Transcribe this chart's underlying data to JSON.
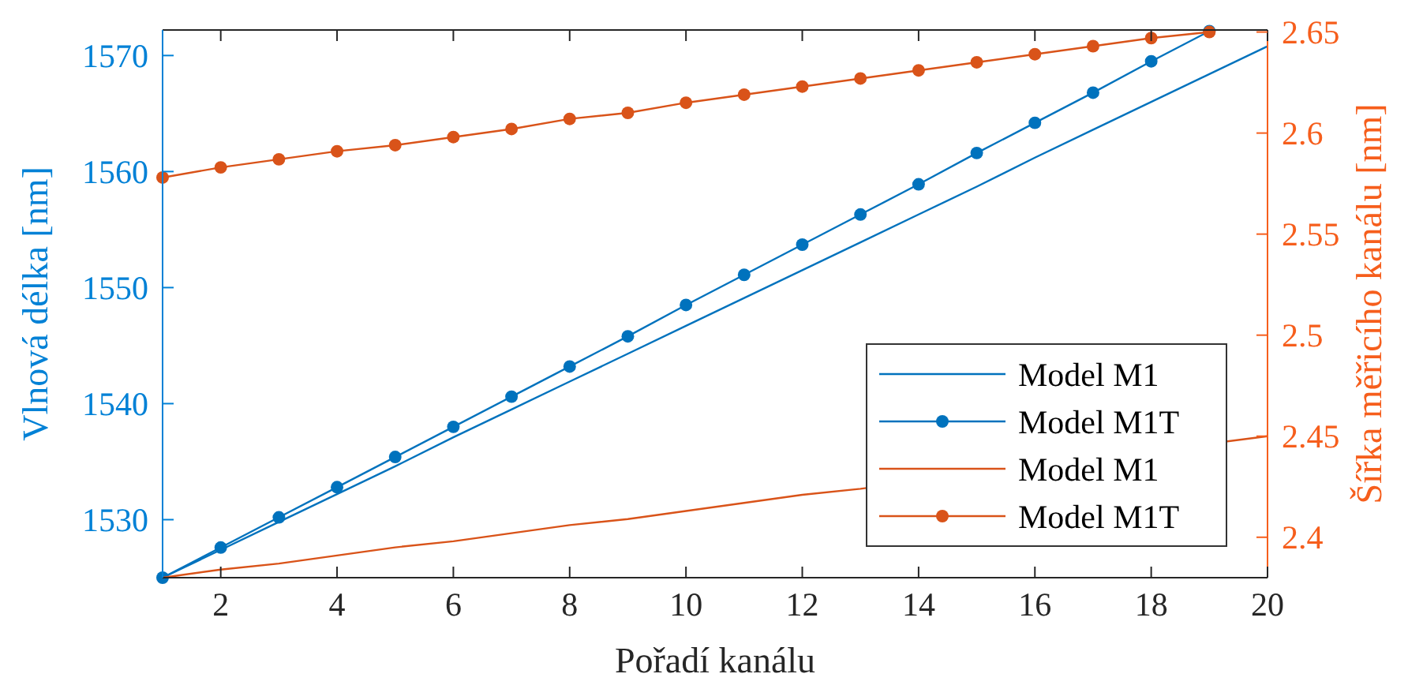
{
  "chart_data": {
    "type": "line",
    "xlabel": "Pořadí kanálu",
    "ylabel": "Vlnová délka [nm]",
    "y2label": "Šířka měřicího kanálu [nm]",
    "x": [
      1,
      2,
      3,
      4,
      5,
      6,
      7,
      8,
      9,
      10,
      11,
      12,
      13,
      14,
      15,
      16,
      17,
      18,
      19
    ],
    "xlim": [
      1,
      20
    ],
    "xticks": [
      2,
      4,
      6,
      8,
      10,
      12,
      14,
      16,
      18,
      20
    ],
    "ylim": [
      1525,
      1572.2
    ],
    "yticks": [
      1530,
      1540,
      1550,
      1560,
      1570
    ],
    "y2lim": [
      2.38,
      2.651
    ],
    "y2ticks": [
      2.4,
      2.45,
      2.5,
      2.55,
      2.6,
      2.65
    ],
    "legend": "bottom right",
    "grid": false,
    "series": [
      {
        "name": "Model M1",
        "color": "#0072bd",
        "x": [
          1,
          2,
          3,
          4,
          5,
          6,
          7,
          8,
          9,
          10,
          11,
          12,
          13,
          14,
          15,
          16,
          17,
          18,
          19,
          20
        ],
        "values": [
          1525,
          1527.4,
          1529.8,
          1532.2,
          1534.6,
          1537.1,
          1539.5,
          1541.9,
          1544.3,
          1546.7,
          1549.1,
          1551.5,
          1553.9,
          1556.3,
          1558.7,
          1561.2,
          1563.6,
          1566,
          1568.4,
          1570.8
        ]
      },
      {
        "name": "Model M1T",
        "color": "#0072bd",
        "marker": "circle",
        "values": [
          1525,
          1527.6,
          1530.2,
          1532.8,
          1535.4,
          1538,
          1540.6,
          1543.2,
          1545.8,
          1548.5,
          1551.1,
          1553.7,
          1556.3,
          1558.9,
          1561.6,
          1564.2,
          1566.8,
          1569.5,
          1572.1
        ]
      },
      {
        "name": "Model M1",
        "color": "#d95319",
        "axis": "y2",
        "x": [
          1,
          2,
          3,
          4,
          5,
          6,
          7,
          8,
          9,
          10,
          11,
          12,
          13,
          20
        ],
        "values": [
          2.38,
          2.384,
          2.387,
          2.391,
          2.395,
          2.398,
          2.402,
          2.406,
          2.409,
          2.413,
          2.417,
          2.421,
          2.424,
          2.45
        ]
      },
      {
        "name": "Model M1T",
        "color": "#d95319",
        "marker": "circle",
        "axis": "y2",
        "values": [
          2.578,
          2.583,
          2.587,
          2.591,
          2.594,
          2.598,
          2.602,
          2.607,
          2.61,
          2.615,
          2.619,
          2.623,
          2.627,
          2.631,
          2.635,
          2.639,
          2.643,
          2.647,
          2.65
        ]
      }
    ]
  }
}
